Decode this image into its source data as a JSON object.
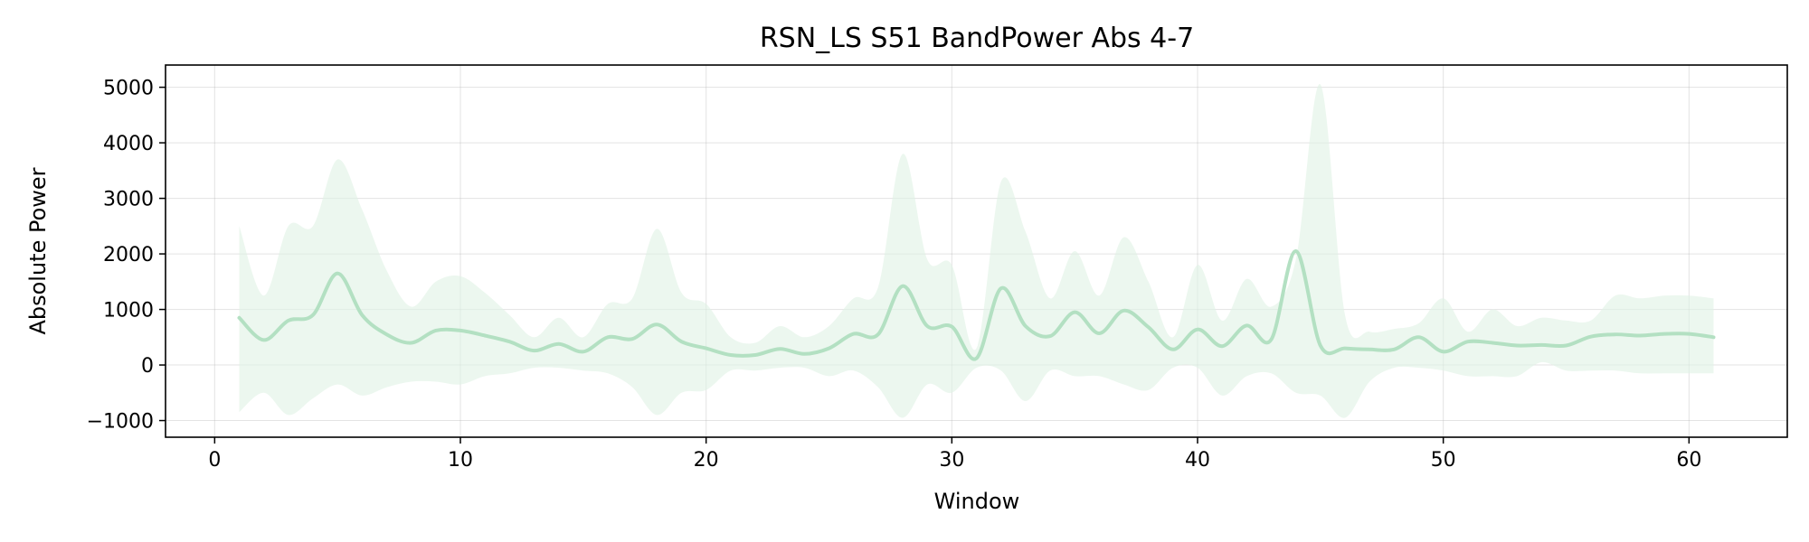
{
  "chart_data": {
    "type": "line",
    "title": "RSN_LS S51 BandPower Abs 4-7",
    "xlabel": "Window",
    "ylabel": "Absolute Power",
    "xlim": [
      -2,
      64
    ],
    "ylim": [
      -1300,
      5400
    ],
    "xticks": [
      0,
      10,
      20,
      30,
      40,
      50,
      60
    ],
    "yticks": [
      -1000,
      0,
      1000,
      2000,
      3000,
      4000,
      5000
    ],
    "xtick_labels": [
      "0",
      "10",
      "20",
      "30",
      "40",
      "50",
      "60"
    ],
    "ytick_labels": [
      "−1000",
      "0",
      "1000",
      "2000",
      "3000",
      "4000",
      "5000"
    ],
    "grid": true,
    "colors": {
      "line": "#b3e0c2",
      "band": "#dff2e5"
    },
    "series": [
      {
        "x": [
          1,
          2,
          3,
          4,
          5,
          6,
          7,
          8,
          9,
          10,
          11,
          12,
          13,
          14,
          15,
          16,
          17,
          18,
          19,
          20,
          21,
          22,
          23,
          24,
          25,
          26,
          27,
          28,
          29,
          30,
          31,
          32,
          33,
          34,
          35,
          36,
          37,
          38,
          39,
          40,
          41,
          42,
          43,
          44,
          45,
          46,
          47,
          48,
          49,
          50,
          51,
          52,
          53,
          54,
          55,
          56,
          57,
          58,
          59,
          60,
          61
        ],
        "mean": [
          850,
          450,
          800,
          900,
          1650,
          900,
          550,
          400,
          620,
          620,
          530,
          420,
          260,
          380,
          240,
          500,
          470,
          730,
          420,
          300,
          180,
          180,
          290,
          200,
          300,
          560,
          550,
          1420,
          700,
          690,
          120,
          1380,
          700,
          520,
          950,
          570,
          980,
          680,
          280,
          640,
          340,
          710,
          460,
          2050,
          350,
          300,
          280,
          280,
          500,
          240,
          420,
          400,
          350,
          360,
          350,
          510,
          550,
          530,
          560,
          560,
          500
        ],
        "upper": [
          2500,
          1250,
          2500,
          2500,
          3700,
          2800,
          1700,
          1050,
          1500,
          1600,
          1300,
          900,
          500,
          850,
          500,
          1100,
          1200,
          2450,
          1300,
          1100,
          500,
          400,
          700,
          500,
          700,
          1200,
          1400,
          3800,
          1900,
          1800,
          300,
          3300,
          2400,
          1200,
          2050,
          1250,
          2300,
          1500,
          500,
          1800,
          800,
          1550,
          1050,
          1900,
          5050,
          900,
          600,
          650,
          750,
          1200,
          600,
          1000,
          700,
          850,
          800,
          800,
          1250,
          1200,
          1250,
          1250,
          1200
        ],
        "lower": [
          -850,
          -500,
          -900,
          -600,
          -350,
          -550,
          -400,
          -300,
          -300,
          -350,
          -200,
          -150,
          -50,
          -50,
          -100,
          -150,
          -400,
          -900,
          -500,
          -450,
          -100,
          -100,
          -50,
          -50,
          -200,
          -100,
          -400,
          -950,
          -350,
          -500,
          -50,
          -100,
          -650,
          -100,
          -200,
          -200,
          -350,
          -450,
          -50,
          -50,
          -550,
          -200,
          -150,
          -500,
          -550,
          -950,
          -300,
          -50,
          -50,
          -100,
          -200,
          -200,
          -200,
          50,
          -100,
          -100,
          -100,
          -150,
          -150,
          -150,
          -150
        ]
      }
    ]
  }
}
